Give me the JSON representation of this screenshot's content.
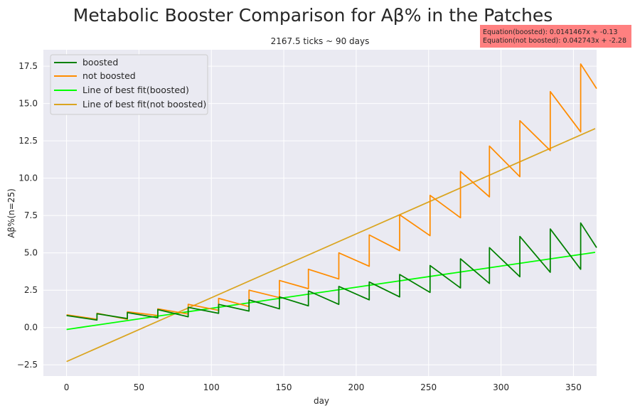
{
  "chart_data": {
    "type": "line",
    "title": "Metabolic Booster Comparison for Aβ% in the Patches",
    "subtitle": "2167.5 ticks ~ 90 days",
    "xlabel": "day",
    "ylabel": "Aβ%(n=25)",
    "xlim": [
      -16,
      366
    ],
    "ylim": [
      -3.25,
      18.6
    ],
    "xticks": [
      0,
      50,
      100,
      150,
      200,
      250,
      300,
      350
    ],
    "yticks": [
      -2.5,
      0.0,
      2.5,
      5.0,
      7.5,
      10.0,
      12.5,
      15.0,
      17.5
    ],
    "ytick_labels": [
      "−2.5",
      "0.0",
      "2.5",
      "5.0",
      "7.5",
      "10.0",
      "12.5",
      "15.0",
      "17.5"
    ],
    "grid": true,
    "legend_placement": "top-left",
    "annotation": {
      "lines": [
        "Equation(boosted): 0.0141467x + -0.13",
        "Equation(not boosted): 0.042743x + -2.28"
      ],
      "placement": "top-right",
      "color": "#ff8080"
    },
    "cycle_days": [
      0,
      21,
      42,
      63,
      84,
      105,
      126,
      147,
      167,
      188,
      209,
      230,
      251,
      272,
      292,
      313,
      334,
      355,
      366
    ],
    "series": [
      {
        "name": "boosted",
        "color": "#008000",
        "style": "sawtooth",
        "peaks": [
          0.8,
          0.92,
          1.0,
          1.2,
          1.35,
          1.55,
          1.85,
          2.05,
          2.45,
          2.75,
          3.05,
          3.55,
          4.15,
          4.6,
          5.35,
          6.1,
          6.6,
          7.0
        ],
        "troughs": [
          0.5,
          0.6,
          0.65,
          0.72,
          0.95,
          1.1,
          1.25,
          1.45,
          1.55,
          1.85,
          2.05,
          2.35,
          2.65,
          2.95,
          3.4,
          3.7,
          3.9,
          5.35
        ]
      },
      {
        "name": "not boosted",
        "color": "#ff8c00",
        "style": "sawtooth",
        "peaks": [
          0.85,
          0.95,
          1.05,
          1.25,
          1.55,
          1.95,
          2.5,
          3.15,
          3.9,
          5.0,
          6.2,
          7.55,
          8.85,
          10.45,
          12.15,
          13.85,
          15.8,
          17.65
        ],
        "troughs": [
          0.55,
          0.55,
          0.8,
          0.9,
          1.15,
          1.4,
          2.0,
          2.6,
          3.25,
          4.1,
          5.15,
          6.15,
          7.35,
          8.75,
          10.1,
          11.85,
          13.1,
          16.0
        ]
      },
      {
        "name": "Line of best fit(boosted)",
        "color": "#00ff00",
        "style": "linear",
        "slope": 0.0141467,
        "intercept": -0.13,
        "x_range": [
          0,
          365
        ]
      },
      {
        "name": "Line of best fit(not boosted)",
        "color": "#daa520",
        "style": "linear",
        "slope": 0.042743,
        "intercept": -2.28,
        "x_range": [
          0,
          365
        ]
      }
    ]
  }
}
